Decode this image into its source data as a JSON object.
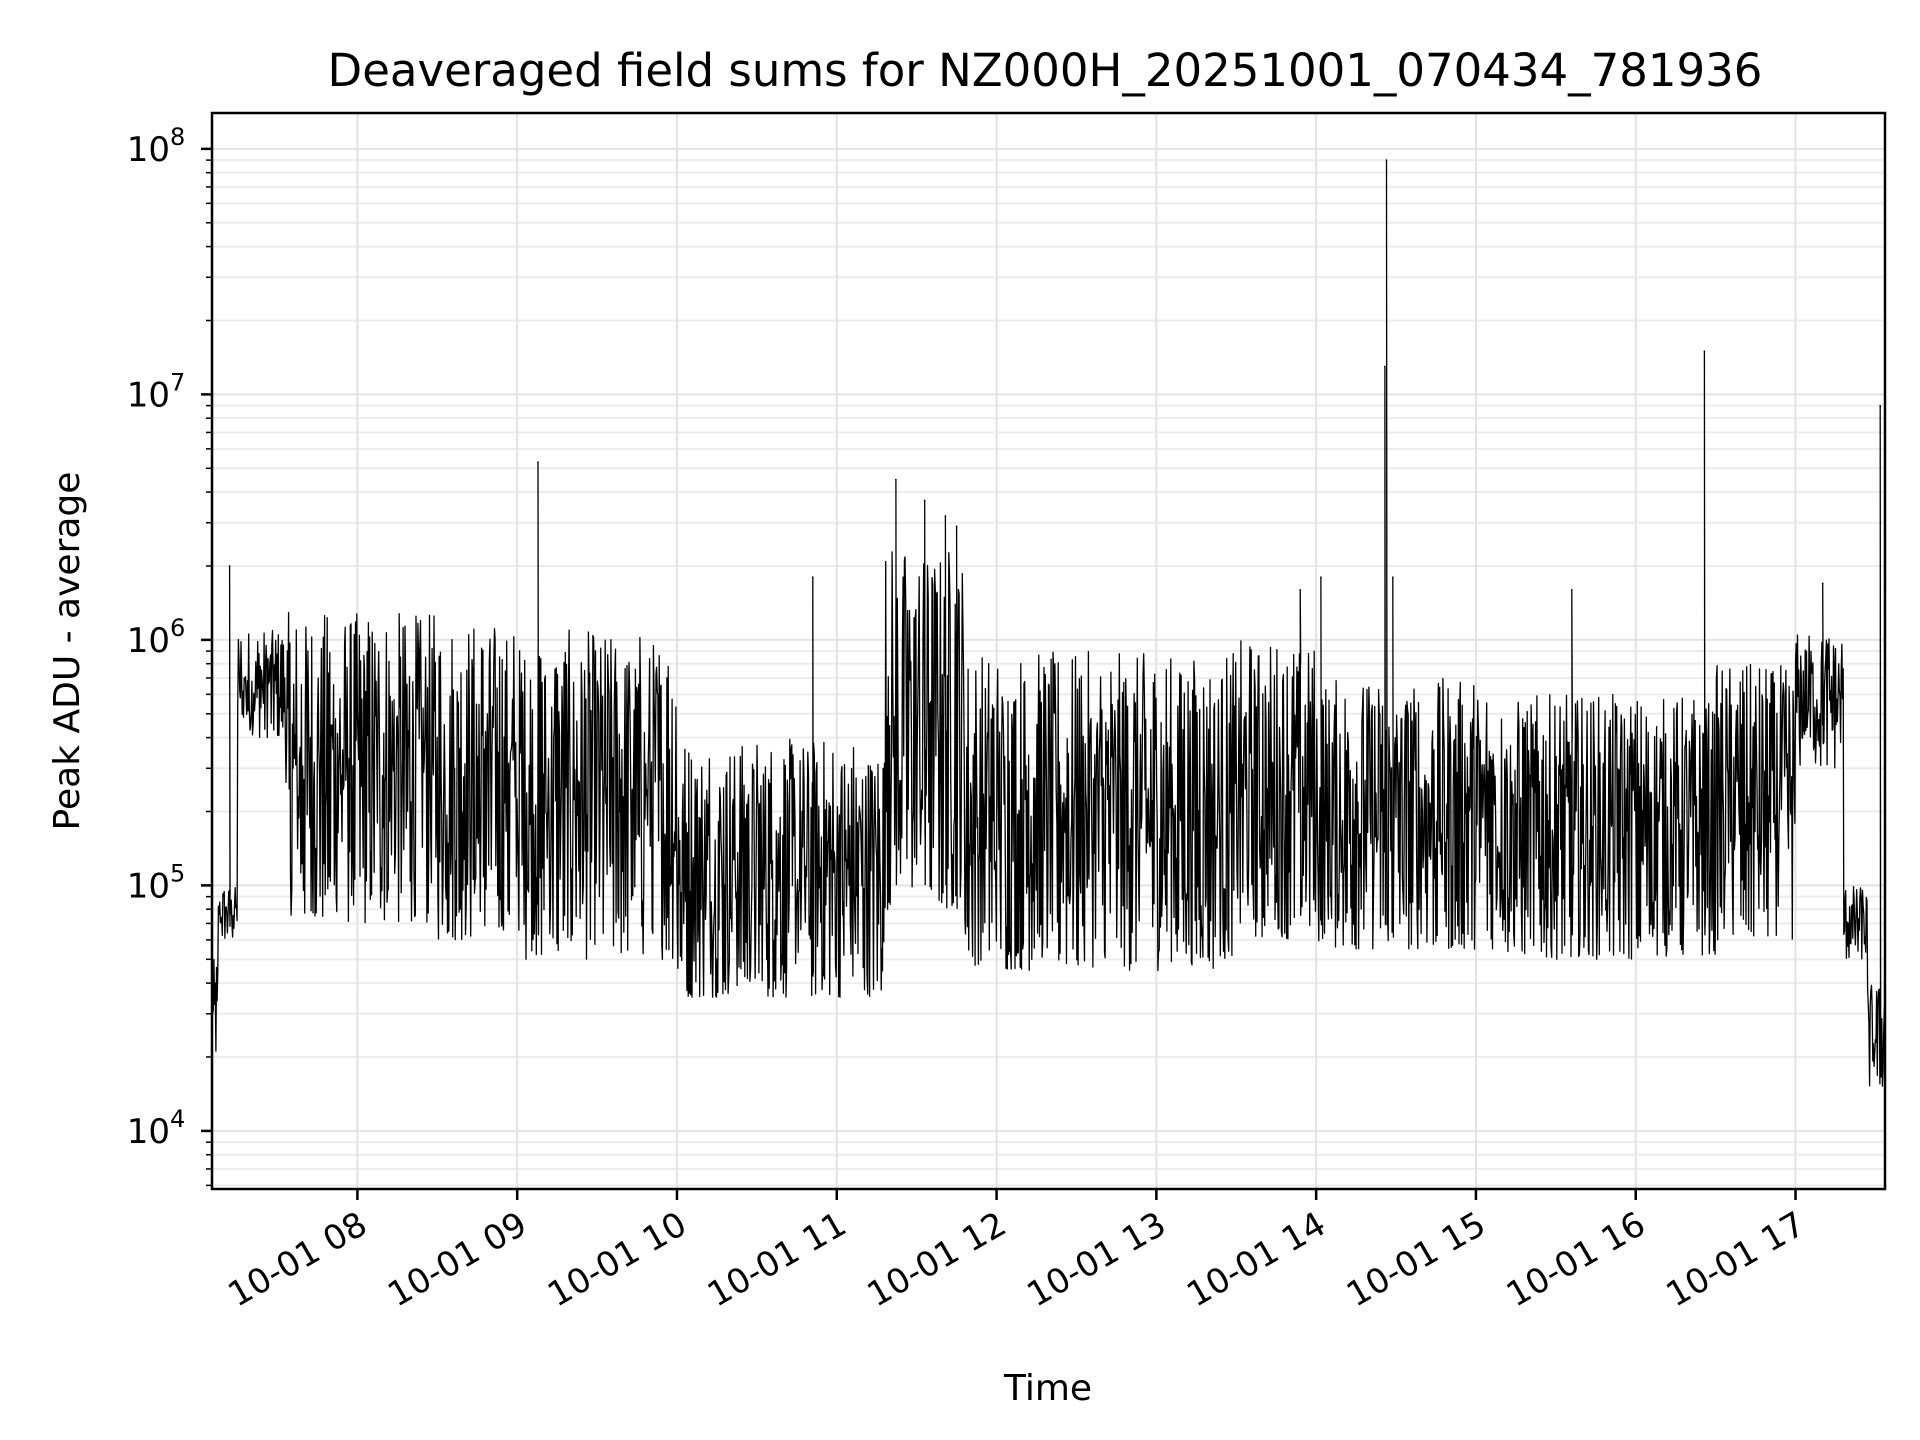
{
  "chart_data": {
    "type": "line",
    "title": "Deaveraged field sums for NZ000H_20251001_070434_781936",
    "xlabel": "Time",
    "ylabel": "Peak ADU - average",
    "yscale": "log",
    "ylim": [
      5800,
      140000000
    ],
    "xlim_hours": [
      7.09,
      17.56
    ],
    "x_ticks": [
      {
        "hour": 8,
        "label": "10-01 08"
      },
      {
        "hour": 9,
        "label": "10-01 09"
      },
      {
        "hour": 10,
        "label": "10-01 10"
      },
      {
        "hour": 11,
        "label": "10-01 11"
      },
      {
        "hour": 12,
        "label": "10-01 12"
      },
      {
        "hour": 13,
        "label": "10-01 13"
      },
      {
        "hour": 14,
        "label": "10-01 14"
      },
      {
        "hour": 15,
        "label": "10-01 15"
      },
      {
        "hour": 16,
        "label": "10-01 16"
      },
      {
        "hour": 17,
        "label": "10-01 17"
      }
    ],
    "y_ticks": [
      {
        "value": 10000,
        "base": "10",
        "exp": "4"
      },
      {
        "value": 100000,
        "base": "10",
        "exp": "5"
      },
      {
        "value": 1000000,
        "base": "10",
        "exp": "6"
      },
      {
        "value": 10000000,
        "base": "10",
        "exp": "7"
      },
      {
        "value": 100000000,
        "base": "10",
        "exp": "8"
      }
    ],
    "grid": true,
    "series": [
      {
        "name": "field sums",
        "baseline_segments": [
          {
            "x0": 7.09,
            "x1": 7.13,
            "hi": 50000,
            "lo": 20000
          },
          {
            "x0": 7.13,
            "x1": 7.25,
            "hi": 100000,
            "lo": 60000
          },
          {
            "x0": 7.25,
            "x1": 7.55,
            "hi": 1100000,
            "lo": 400000
          },
          {
            "x0": 7.55,
            "x1": 8.5,
            "hi": 1300000,
            "lo": 70000
          },
          {
            "x0": 8.5,
            "x1": 9.0,
            "hi": 1200000,
            "lo": 60000
          },
          {
            "x0": 9.0,
            "x1": 10.0,
            "hi": 1100000,
            "lo": 50000
          },
          {
            "x0": 10.0,
            "x1": 11.3,
            "hi": 400000,
            "lo": 35000
          },
          {
            "x0": 11.3,
            "x1": 11.8,
            "hi": 2500000,
            "lo": 80000
          },
          {
            "x0": 11.8,
            "x1": 13.5,
            "hi": 900000,
            "lo": 45000
          },
          {
            "x0": 13.5,
            "x1": 14.0,
            "hi": 1000000,
            "lo": 60000
          },
          {
            "x0": 14.0,
            "x1": 15.2,
            "hi": 700000,
            "lo": 55000
          },
          {
            "x0": 15.2,
            "x1": 16.5,
            "hi": 600000,
            "lo": 50000
          },
          {
            "x0": 16.5,
            "x1": 17.0,
            "hi": 800000,
            "lo": 60000
          },
          {
            "x0": 17.0,
            "x1": 17.3,
            "hi": 1100000,
            "lo": 300000
          },
          {
            "x0": 17.3,
            "x1": 17.45,
            "hi": 100000,
            "lo": 50000
          },
          {
            "x0": 17.45,
            "x1": 17.52,
            "hi": 40000,
            "lo": 15000
          }
        ],
        "spikes": [
          {
            "x": 7.2,
            "y": 2000000
          },
          {
            "x": 9.13,
            "y": 5300000
          },
          {
            "x": 10.85,
            "y": 1800000
          },
          {
            "x": 11.37,
            "y": 4500000
          },
          {
            "x": 11.55,
            "y": 3700000
          },
          {
            "x": 11.68,
            "y": 3200000
          },
          {
            "x": 11.75,
            "y": 2900000
          },
          {
            "x": 13.9,
            "y": 1600000
          },
          {
            "x": 14.03,
            "y": 1800000
          },
          {
            "x": 14.43,
            "y": 13000000
          },
          {
            "x": 14.44,
            "y": 90000000
          },
          {
            "x": 14.48,
            "y": 1800000
          },
          {
            "x": 15.6,
            "y": 1600000
          },
          {
            "x": 16.43,
            "y": 15000000
          },
          {
            "x": 17.17,
            "y": 1700000
          },
          {
            "x": 17.53,
            "y": 9000000
          }
        ]
      }
    ]
  }
}
